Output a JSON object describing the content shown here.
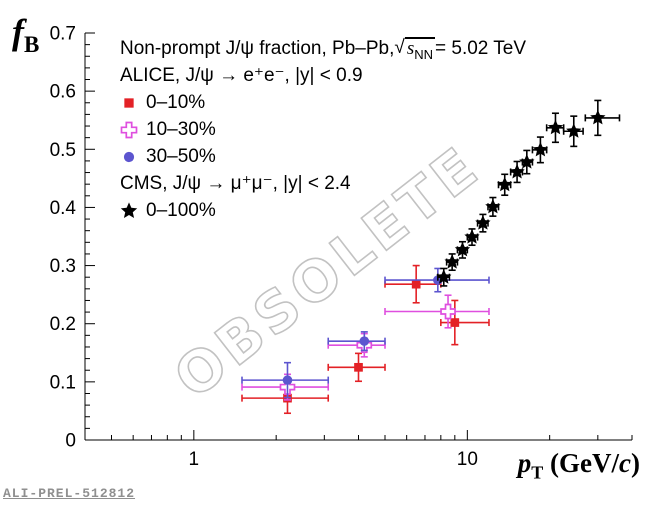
{
  "watermark": {
    "text": "OBSOLETE"
  },
  "footer": {
    "figure_id": "ALI-PREL-512812"
  },
  "axes": {
    "y": {
      "title_main": "f",
      "title_sub": "B"
    },
    "x": {
      "title_main": "p",
      "title_sub": "T",
      "unit_pre": " (GeV/",
      "unit_italic": "c",
      "unit_post": ")"
    }
  },
  "legend": {
    "title_pre": "Non-prompt J/ψ fraction, Pb–Pb, ",
    "sqrt_sym": "√",
    "sqrt_main": "s",
    "sqrt_sub": "NN",
    "title_post": " = 5.02 TeV",
    "alice_header": "ALICE, J/ψ → e⁺e⁻, |y| < 0.9",
    "cms_header": "CMS, J/ψ → μ⁺μ⁻, |y| < 2.4"
  },
  "chart_data": {
    "type": "scatter",
    "title": "Non-prompt J/ψ fraction, Pb–Pb, √sNN = 5.02 TeV",
    "xlabel": "pT (GeV/c)",
    "ylabel": "fB",
    "xscale": "log",
    "xlim": [
      0.4,
      40
    ],
    "ylim": [
      0,
      0.7
    ],
    "x_major_ticks": [
      1,
      10
    ],
    "x_minor_ticks": [
      0.5,
      0.6,
      0.7,
      0.8,
      0.9,
      2,
      3,
      4,
      5,
      6,
      7,
      8,
      9,
      20,
      30,
      40
    ],
    "y_ticks": [
      0,
      0.1,
      0.2,
      0.3,
      0.4,
      0.5,
      0.6,
      0.7
    ],
    "grid": false,
    "legend_position": "top-left",
    "series": [
      {
        "name": "0–10%",
        "experiment": "ALICE",
        "marker": "filled-square",
        "color": "#e32126",
        "points": [
          {
            "x": 2.2,
            "xlo": 1.5,
            "xhi": 3.1,
            "y": 0.072,
            "ey": 0.026
          },
          {
            "x": 4.0,
            "xlo": 3.1,
            "xhi": 5.0,
            "y": 0.125,
            "ey": 0.024
          },
          {
            "x": 6.5,
            "xlo": 5.0,
            "xhi": 8.0,
            "y": 0.268,
            "ey": 0.032
          },
          {
            "x": 9.0,
            "xlo": 8.0,
            "xhi": 12.0,
            "y": 0.202,
            "ey": 0.038
          }
        ]
      },
      {
        "name": "10–30%",
        "experiment": "ALICE",
        "marker": "open-cross",
        "color": "#df4fdf",
        "points": [
          {
            "x": 2.2,
            "xlo": 1.5,
            "xhi": 3.1,
            "y": 0.091,
            "ey": 0.022
          },
          {
            "x": 4.2,
            "xlo": 3.1,
            "xhi": 5.0,
            "y": 0.163,
            "ey": 0.02
          },
          {
            "x": 8.5,
            "xlo": 5.0,
            "xhi": 12.0,
            "y": 0.221,
            "ey": 0.028
          }
        ]
      },
      {
        "name": "30–50%",
        "experiment": "ALICE",
        "marker": "filled-circle",
        "color": "#5c55cf",
        "points": [
          {
            "x": 2.2,
            "xlo": 1.5,
            "xhi": 3.1,
            "y": 0.103,
            "ey": 0.03
          },
          {
            "x": 4.2,
            "xlo": 3.1,
            "xhi": 5.0,
            "y": 0.17,
            "ey": 0.016
          },
          {
            "x": 7.8,
            "xlo": 5.0,
            "xhi": 12.0,
            "y": 0.275,
            "ey": 0.02
          }
        ]
      },
      {
        "name": "0–100%",
        "experiment": "CMS",
        "marker": "filled-star",
        "color": "#000000",
        "points": [
          {
            "x": 8.2,
            "xlo": 7.8,
            "xhi": 8.6,
            "y": 0.28,
            "ey": 0.015
          },
          {
            "x": 8.8,
            "xlo": 8.4,
            "xhi": 9.2,
            "y": 0.306,
            "ey": 0.014
          },
          {
            "x": 9.6,
            "xlo": 9.2,
            "xhi": 10.0,
            "y": 0.327,
            "ey": 0.014
          },
          {
            "x": 10.4,
            "xlo": 10.0,
            "xhi": 10.9,
            "y": 0.349,
            "ey": 0.014
          },
          {
            "x": 11.4,
            "xlo": 10.9,
            "xhi": 11.9,
            "y": 0.373,
            "ey": 0.015
          },
          {
            "x": 12.4,
            "xlo": 11.9,
            "xhi": 13.0,
            "y": 0.401,
            "ey": 0.016
          },
          {
            "x": 13.7,
            "xlo": 13.0,
            "xhi": 14.4,
            "y": 0.439,
            "ey": 0.018
          },
          {
            "x": 15.2,
            "xlo": 14.4,
            "xhi": 15.9,
            "y": 0.461,
            "ey": 0.018
          },
          {
            "x": 16.5,
            "xlo": 15.9,
            "xhi": 17.3,
            "y": 0.478,
            "ey": 0.02
          },
          {
            "x": 18.5,
            "xlo": 17.3,
            "xhi": 19.5,
            "y": 0.499,
            "ey": 0.022
          },
          {
            "x": 21.0,
            "xlo": 19.5,
            "xhi": 22.5,
            "y": 0.537,
            "ey": 0.025
          },
          {
            "x": 24.5,
            "xlo": 22.5,
            "xhi": 26.5,
            "y": 0.531,
            "ey": 0.026
          },
          {
            "x": 30.0,
            "xlo": 27.0,
            "xhi": 36.0,
            "y": 0.554,
            "ey": 0.03
          }
        ]
      }
    ]
  }
}
